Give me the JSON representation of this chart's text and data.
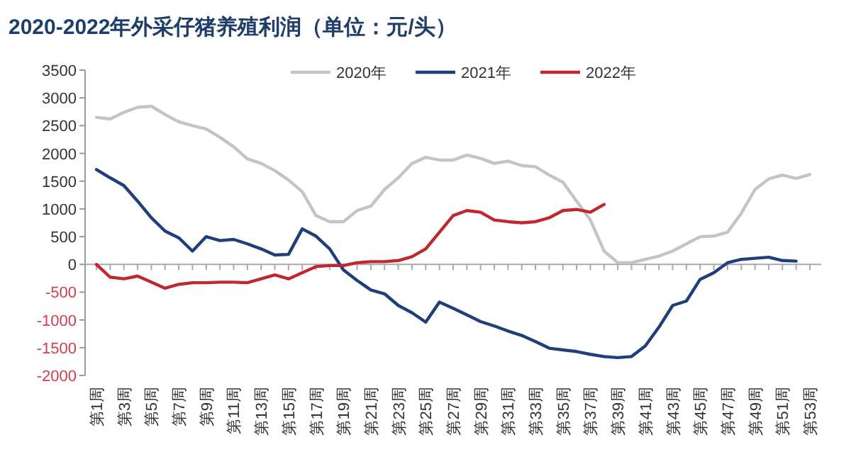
{
  "chart_data": {
    "type": "line",
    "title": "2020-2022年外采仔猪养殖利润（单位：元/头）",
    "categories": [
      "第1周",
      null,
      "第3周",
      null,
      "第5周",
      null,
      "第7周",
      null,
      "第9周",
      null,
      "第11周",
      null,
      "第13周",
      null,
      "第15周",
      null,
      "第17周",
      null,
      "第19周",
      null,
      "第21周",
      null,
      "第23周",
      null,
      "第25周",
      null,
      "第27周",
      null,
      "第29周",
      null,
      "第31周",
      null,
      "第33周",
      null,
      "第35周",
      null,
      "第37周",
      null,
      "第39周",
      null,
      "第41周",
      null,
      "第43周",
      null,
      "第45周",
      null,
      "第47周",
      null,
      "第49周",
      null,
      "第51周",
      null,
      "第53周"
    ],
    "series": [
      {
        "name": "2020年",
        "color": "#c4c4c4",
        "values": [
          2650,
          2620,
          2740,
          2830,
          2850,
          2700,
          2570,
          2500,
          2440,
          2290,
          2120,
          1900,
          1820,
          1690,
          1520,
          1310,
          880,
          770,
          770,
          970,
          1050,
          1350,
          1560,
          1820,
          1930,
          1880,
          1880,
          1970,
          1910,
          1820,
          1860,
          1780,
          1760,
          1610,
          1480,
          1140,
          800,
          240,
          30,
          30,
          90,
          150,
          240,
          370,
          500,
          510,
          580,
          920,
          1350,
          1540,
          1610,
          1550,
          1620
        ]
      },
      {
        "name": "2021年",
        "color": "#1f3f7a",
        "values": [
          1710,
          1560,
          1420,
          1140,
          840,
          600,
          480,
          240,
          500,
          430,
          450,
          370,
          280,
          170,
          180,
          640,
          510,
          280,
          -100,
          -290,
          -460,
          -530,
          -740,
          -870,
          -1040,
          -680,
          -790,
          -910,
          -1030,
          -1110,
          -1200,
          -1280,
          -1390,
          -1510,
          -1540,
          -1570,
          -1620,
          -1660,
          -1680,
          -1660,
          -1470,
          -1130,
          -740,
          -660,
          -270,
          -150,
          30,
          90,
          110,
          130,
          70,
          60,
          null
        ]
      },
      {
        "name": "2022年",
        "color": "#c0282f",
        "values": [
          0,
          -230,
          -260,
          -210,
          -320,
          -430,
          -360,
          -330,
          -330,
          -320,
          -320,
          -330,
          -260,
          -190,
          -260,
          -150,
          -40,
          -20,
          -20,
          30,
          50,
          50,
          70,
          140,
          280,
          580,
          880,
          970,
          940,
          800,
          770,
          750,
          770,
          840,
          970,
          990,
          940,
          1080,
          null,
          null,
          null,
          null,
          null,
          null,
          null,
          null,
          null,
          null,
          null,
          null,
          null,
          null,
          null
        ]
      }
    ],
    "ylim": [
      -2000,
      3500
    ],
    "yticks": [
      -2000,
      -1500,
      -1000,
      -500,
      0,
      500,
      1000,
      1500,
      2000,
      2500,
      3000,
      3500
    ],
    "legend": "top",
    "marker": "none",
    "line_style": "solid"
  }
}
